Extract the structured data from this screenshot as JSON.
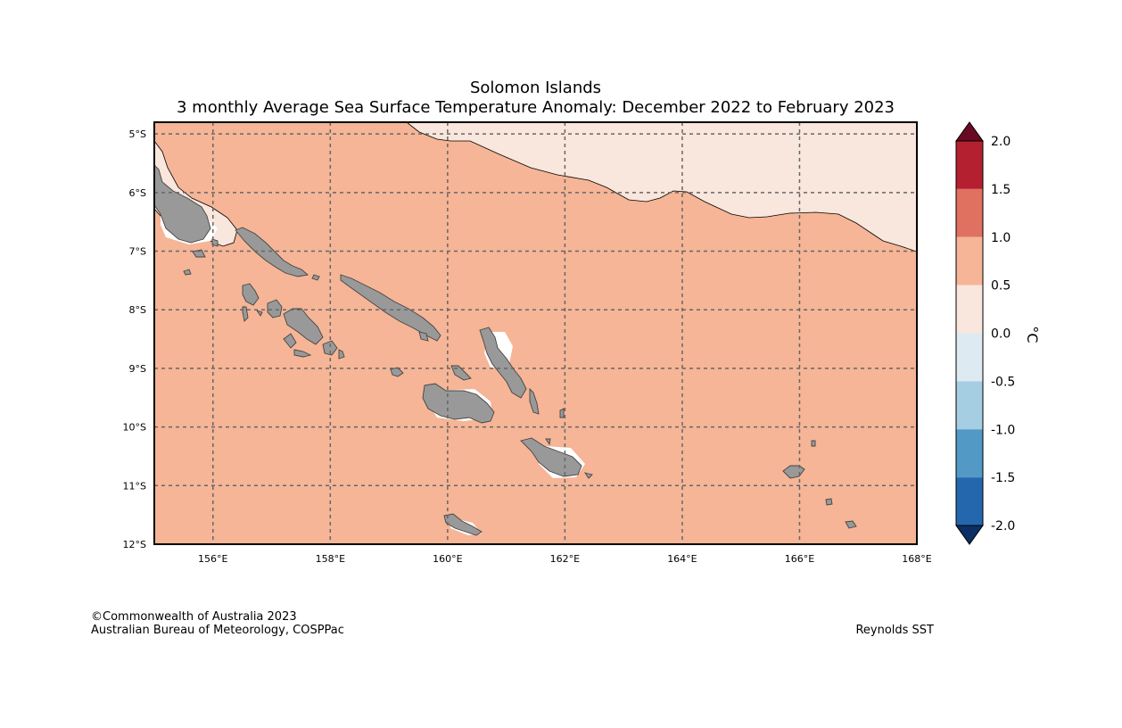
{
  "title": "Solomon Islands",
  "subtitle": "3 monthly Average Sea Surface Temperature Anomaly: December 2022 to February 2023",
  "map": {
    "lon_range": [
      155,
      168
    ],
    "lat_range": [
      -12,
      -4.8
    ],
    "lon_ticks": [
      {
        "value": 156,
        "label": "156°E"
      },
      {
        "value": 158,
        "label": "158°E"
      },
      {
        "value": 160,
        "label": "160°E"
      },
      {
        "value": 162,
        "label": "162°E"
      },
      {
        "value": 164,
        "label": "164°E"
      },
      {
        "value": 166,
        "label": "166°E"
      },
      {
        "value": 168,
        "label": "168°E"
      }
    ],
    "lat_ticks": [
      {
        "value": -5,
        "label": "5°S"
      },
      {
        "value": -6,
        "label": "6°S"
      },
      {
        "value": -7,
        "label": "7°S"
      },
      {
        "value": -8,
        "label": "8°S"
      },
      {
        "value": -9,
        "label": "9°S"
      },
      {
        "value": -10,
        "label": "10°S"
      },
      {
        "value": -11,
        "label": "11°S"
      },
      {
        "value": -12,
        "label": "12°S"
      }
    ],
    "grid": true,
    "dominant_anomaly_class": "0.5 to 1.0",
    "northeast_anomaly_class": "0.0 to 0.5",
    "colors": {
      "anomaly_0_5_to_1_0": "#f5b596",
      "anomaly_0_0_to_0_5": "#f9e6dc",
      "land": "#999999"
    }
  },
  "colorbar": {
    "unit": "°C",
    "extend": "both",
    "levels": [
      {
        "label": "2.0",
        "value": 2.0
      },
      {
        "label": "1.5",
        "value": 1.5
      },
      {
        "label": "1.0",
        "value": 1.0
      },
      {
        "label": "0.5",
        "value": 0.5
      },
      {
        "label": "0.0",
        "value": 0.0
      },
      {
        "label": "-0.5",
        "value": -0.5
      },
      {
        "label": "-1.0",
        "value": -1.0
      },
      {
        "label": "-1.5",
        "value": -1.5
      },
      {
        "label": "-2.0",
        "value": -2.0
      }
    ],
    "colors_top_to_bottom": [
      "#b52030",
      "#e07060",
      "#f5b596",
      "#f9e6dc",
      "#deeaf2",
      "#a5cee3",
      "#5399c6",
      "#2467ad"
    ],
    "over_color": "#6a0a22",
    "under_color": "#0c3063"
  },
  "credits": {
    "line1": "©Commonwealth of Australia 2023",
    "line2": "Australian Bureau of Meteorology, COSPPac",
    "source": "Reynolds SST"
  }
}
